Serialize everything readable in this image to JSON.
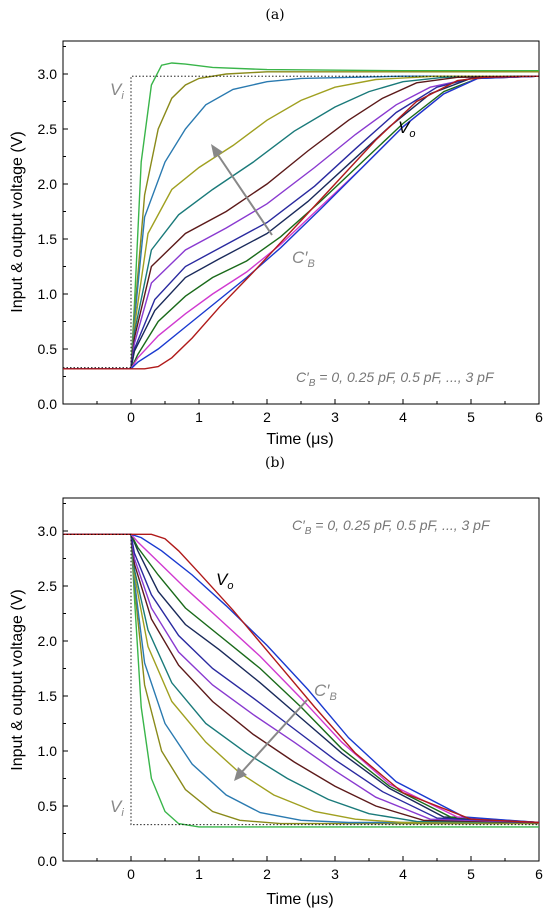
{
  "figure": {
    "panels": [
      {
        "panel_label": "(a)"
      },
      {
        "panel_label": "(b)"
      }
    ]
  },
  "chart_data": [
    {
      "type": "line",
      "panel": "(a)",
      "xlabel": "Time (μs)",
      "ylabel": "Input & output voltage (V)",
      "xlim": [
        -1,
        6
      ],
      "ylim": [
        0,
        3.3
      ],
      "x_ticks": [
        "0",
        "1",
        "2",
        "3",
        "4",
        "5",
        "6"
      ],
      "y_ticks": [
        "0.0",
        "0.5",
        "1.0",
        "1.5",
        "2.0",
        "2.5",
        "3.0"
      ],
      "annotations": {
        "vi": "V_i",
        "vo": "V_o",
        "cb": "C′_B",
        "note": "C′_B = 0, 0.25 pF, 0.5 pF, ..., 3 pF"
      },
      "input": {
        "name": "V_i",
        "x": [
          -1,
          0,
          0,
          6
        ],
        "y": [
          0.33,
          0.33,
          2.98,
          2.98
        ]
      },
      "series": [
        {
          "color": "#39b54a",
          "x": [
            -1,
            0,
            0.05,
            0.15,
            0.3,
            0.45,
            0.6,
            0.8,
            1.2,
            2,
            4,
            6
          ],
          "y": [
            0.32,
            0.32,
            0.9,
            2.2,
            2.9,
            3.08,
            3.1,
            3.09,
            3.06,
            3.04,
            3.03,
            3.03
          ]
        },
        {
          "color": "#8a8a1a",
          "x": [
            -1,
            0,
            0.05,
            0.2,
            0.4,
            0.6,
            0.8,
            1.0,
            1.4,
            2,
            4,
            6
          ],
          "y": [
            0.32,
            0.32,
            0.8,
            1.9,
            2.5,
            2.78,
            2.9,
            2.96,
            3.0,
            3.02,
            3.02,
            3.02
          ]
        },
        {
          "color": "#2a7ab0",
          "x": [
            -1,
            0,
            0.05,
            0.2,
            0.5,
            0.8,
            1.1,
            1.5,
            2,
            2.5,
            4,
            6
          ],
          "y": [
            0.32,
            0.32,
            0.75,
            1.7,
            2.2,
            2.5,
            2.72,
            2.86,
            2.93,
            2.96,
            2.98,
            2.98
          ]
        },
        {
          "color": "#a0a020",
          "x": [
            -1,
            0,
            0.05,
            0.25,
            0.6,
            1.0,
            1.5,
            2.0,
            2.5,
            3.0,
            3.6,
            4.5,
            6
          ],
          "y": [
            0.32,
            0.32,
            0.7,
            1.55,
            1.95,
            2.15,
            2.35,
            2.58,
            2.76,
            2.88,
            2.95,
            2.98,
            2.98
          ]
        },
        {
          "color": "#1a7a7a",
          "x": [
            -1,
            0,
            0.05,
            0.3,
            0.7,
            1.2,
            1.8,
            2.4,
            3.0,
            3.5,
            4.0,
            4.6,
            6
          ],
          "y": [
            0.32,
            0.32,
            0.65,
            1.4,
            1.72,
            1.95,
            2.2,
            2.48,
            2.7,
            2.84,
            2.93,
            2.97,
            2.98
          ]
        },
        {
          "color": "#5c1a1a",
          "x": [
            -1,
            0,
            0.05,
            0.3,
            0.8,
            1.4,
            2.0,
            2.6,
            3.2,
            3.7,
            4.2,
            4.8,
            6
          ],
          "y": [
            0.32,
            0.32,
            0.6,
            1.25,
            1.55,
            1.75,
            2.0,
            2.3,
            2.58,
            2.78,
            2.92,
            2.97,
            2.98
          ]
        },
        {
          "color": "#8a3ad0",
          "x": [
            -1,
            0,
            0.05,
            0.3,
            0.8,
            1.4,
            2.0,
            2.7,
            3.3,
            3.9,
            4.4,
            5.0,
            6
          ],
          "y": [
            0.32,
            0.32,
            0.55,
            1.1,
            1.4,
            1.6,
            1.82,
            2.15,
            2.45,
            2.72,
            2.88,
            2.96,
            2.98
          ]
        },
        {
          "color": "#2a2aa0",
          "x": [
            -1,
            0,
            0.05,
            0.35,
            0.8,
            1.4,
            2.0,
            2.7,
            3.3,
            3.9,
            4.5,
            5.0,
            6
          ],
          "y": [
            0.32,
            0.32,
            0.5,
            0.95,
            1.25,
            1.45,
            1.65,
            1.98,
            2.32,
            2.65,
            2.88,
            2.96,
            2.98
          ]
        },
        {
          "color": "#1a2a5a",
          "x": [
            -1,
            0,
            0.05,
            0.35,
            0.8,
            1.3,
            2.0,
            2.6,
            3.2,
            3.8,
            4.4,
            5.0,
            6
          ],
          "y": [
            0.32,
            0.32,
            0.48,
            0.85,
            1.15,
            1.32,
            1.55,
            1.84,
            2.18,
            2.52,
            2.82,
            2.96,
            2.98
          ]
        },
        {
          "color": "#1a6a1a",
          "x": [
            -1,
            0,
            0.1,
            0.4,
            0.8,
            1.2,
            1.7,
            2.2,
            2.8,
            3.4,
            4.0,
            4.6,
            5.1,
            6
          ],
          "y": [
            0.32,
            0.32,
            0.45,
            0.75,
            0.98,
            1.15,
            1.3,
            1.52,
            1.85,
            2.2,
            2.55,
            2.84,
            2.96,
            2.98
          ]
        },
        {
          "color": "#d03ad0",
          "x": [
            -1,
            0,
            0.1,
            0.4,
            0.8,
            1.2,
            1.7,
            2.2,
            2.8,
            3.4,
            4.0,
            4.6,
            5.1,
            6
          ],
          "y": [
            0.32,
            0.32,
            0.42,
            0.62,
            0.82,
            1.0,
            1.2,
            1.45,
            1.8,
            2.15,
            2.52,
            2.82,
            2.96,
            2.98
          ]
        },
        {
          "color": "#1a3ad0",
          "x": [
            -1,
            0,
            0.1,
            0.4,
            0.8,
            1.2,
            1.7,
            2.2,
            2.8,
            3.4,
            4.0,
            4.6,
            5.1,
            6
          ],
          "y": [
            0.32,
            0.32,
            0.38,
            0.5,
            0.7,
            0.9,
            1.15,
            1.42,
            1.78,
            2.15,
            2.52,
            2.82,
            2.96,
            2.98
          ]
        },
        {
          "color": "#b01a1a",
          "x": [
            -1,
            0,
            0.2,
            0.4,
            0.6,
            0.9,
            1.3,
            1.8,
            2.4,
            3.0,
            3.6,
            4.2,
            4.8,
            5.2,
            6
          ],
          "y": [
            0.32,
            0.32,
            0.32,
            0.34,
            0.42,
            0.6,
            0.88,
            1.2,
            1.6,
            2.0,
            2.4,
            2.75,
            2.94,
            2.97,
            2.98
          ]
        }
      ]
    },
    {
      "type": "line",
      "panel": "(b)",
      "xlabel": "Time (μs)",
      "ylabel": "Input & output voltage (V)",
      "xlim": [
        -1,
        6
      ],
      "ylim": [
        0,
        3.3
      ],
      "x_ticks": [
        "0",
        "1",
        "2",
        "3",
        "4",
        "5",
        "6"
      ],
      "y_ticks": [
        "0.0",
        "0.5",
        "1.0",
        "1.5",
        "2.0",
        "2.5",
        "3.0"
      ],
      "annotations": {
        "vi": "V_i",
        "vo": "V_o",
        "cb": "C′_B",
        "note": "C′_B = 0, 0.25 pF, 0.5 pF, ..., 3 pF"
      },
      "input": {
        "name": "V_i",
        "x": [
          -1,
          0,
          0,
          6
        ],
        "y": [
          2.97,
          2.97,
          0.33,
          0.33
        ]
      },
      "series": [
        {
          "color": "#39b54a",
          "x": [
            -1,
            0,
            0.05,
            0.15,
            0.3,
            0.5,
            0.7,
            1.0,
            1.5,
            2.5,
            6
          ],
          "y": [
            2.97,
            2.97,
            2.4,
            1.4,
            0.75,
            0.45,
            0.34,
            0.31,
            0.31,
            0.31,
            0.31
          ]
        },
        {
          "color": "#8a8a1a",
          "x": [
            -1,
            0,
            0.05,
            0.2,
            0.45,
            0.8,
            1.2,
            1.6,
            2.2,
            3,
            6
          ],
          "y": [
            2.97,
            2.97,
            2.5,
            1.6,
            1.0,
            0.65,
            0.45,
            0.37,
            0.34,
            0.34,
            0.34
          ]
        },
        {
          "color": "#2a7ab0",
          "x": [
            -1,
            0,
            0.05,
            0.2,
            0.5,
            0.9,
            1.4,
            1.9,
            2.5,
            3.2,
            6
          ],
          "y": [
            2.97,
            2.97,
            2.55,
            1.8,
            1.25,
            0.88,
            0.6,
            0.44,
            0.37,
            0.35,
            0.35
          ]
        },
        {
          "color": "#a0a020",
          "x": [
            -1,
            0,
            0.05,
            0.25,
            0.6,
            1.1,
            1.6,
            2.1,
            2.7,
            3.3,
            4,
            6
          ],
          "y": [
            2.97,
            2.97,
            2.6,
            1.95,
            1.45,
            1.08,
            0.8,
            0.6,
            0.45,
            0.38,
            0.35,
            0.35
          ]
        },
        {
          "color": "#1a7a7a",
          "x": [
            -1,
            0,
            0.05,
            0.25,
            0.6,
            1.1,
            1.7,
            2.3,
            2.9,
            3.5,
            4.2,
            6
          ],
          "y": [
            2.97,
            2.97,
            2.65,
            2.1,
            1.62,
            1.25,
            0.98,
            0.75,
            0.56,
            0.43,
            0.36,
            0.35
          ]
        },
        {
          "color": "#5c1a1a",
          "x": [
            -1,
            0,
            0.05,
            0.3,
            0.7,
            1.2,
            1.8,
            2.4,
            3.0,
            3.6,
            4.3,
            6
          ],
          "y": [
            2.97,
            2.97,
            2.7,
            2.2,
            1.78,
            1.45,
            1.15,
            0.9,
            0.68,
            0.5,
            0.37,
            0.35
          ]
        },
        {
          "color": "#8a3ad0",
          "x": [
            -1,
            0,
            0.05,
            0.3,
            0.7,
            1.2,
            1.8,
            2.4,
            3.0,
            3.6,
            4.4,
            6
          ],
          "y": [
            2.97,
            2.97,
            2.75,
            2.3,
            1.9,
            1.6,
            1.33,
            1.08,
            0.82,
            0.58,
            0.38,
            0.35
          ]
        },
        {
          "color": "#2a2aa0",
          "x": [
            -1,
            0,
            0.05,
            0.3,
            0.7,
            1.2,
            1.8,
            2.4,
            3.0,
            3.7,
            4.5,
            6
          ],
          "y": [
            2.97,
            2.97,
            2.8,
            2.42,
            2.05,
            1.75,
            1.48,
            1.2,
            0.92,
            0.63,
            0.39,
            0.35
          ]
        },
        {
          "color": "#1a2a5a",
          "x": [
            -1,
            0,
            0.1,
            0.4,
            0.8,
            1.3,
            1.9,
            2.5,
            3.1,
            3.8,
            4.6,
            6
          ],
          "y": [
            2.97,
            2.97,
            2.82,
            2.45,
            2.15,
            1.92,
            1.62,
            1.3,
            0.98,
            0.66,
            0.4,
            0.35
          ]
        },
        {
          "color": "#1a6a1a",
          "x": [
            -1,
            0,
            0.1,
            0.4,
            0.8,
            1.3,
            1.9,
            2.5,
            3.1,
            3.8,
            4.7,
            6
          ],
          "y": [
            2.97,
            2.97,
            2.85,
            2.6,
            2.3,
            2.05,
            1.75,
            1.4,
            1.02,
            0.68,
            0.4,
            0.35
          ]
        },
        {
          "color": "#d03ad0",
          "x": [
            -1,
            0,
            0.1,
            0.4,
            0.8,
            1.3,
            1.9,
            2.5,
            3.1,
            3.8,
            4.8,
            6
          ],
          "y": [
            2.97,
            2.97,
            2.9,
            2.72,
            2.48,
            2.2,
            1.86,
            1.48,
            1.08,
            0.7,
            0.4,
            0.35
          ]
        },
        {
          "color": "#1a3ad0",
          "x": [
            -1,
            0,
            0.15,
            0.45,
            0.9,
            1.4,
            2.0,
            2.6,
            3.2,
            3.9,
            4.9,
            6
          ],
          "y": [
            2.97,
            2.97,
            2.94,
            2.82,
            2.6,
            2.32,
            1.96,
            1.56,
            1.12,
            0.72,
            0.4,
            0.35
          ]
        },
        {
          "color": "#b01a1a",
          "x": [
            -1,
            0,
            0.3,
            0.5,
            0.7,
            1.0,
            1.5,
            2.1,
            2.7,
            3.3,
            4.0,
            5.0,
            6
          ],
          "y": [
            2.97,
            2.97,
            2.97,
            2.93,
            2.82,
            2.62,
            2.28,
            1.84,
            1.4,
            0.98,
            0.62,
            0.38,
            0.35
          ]
        }
      ]
    }
  ]
}
